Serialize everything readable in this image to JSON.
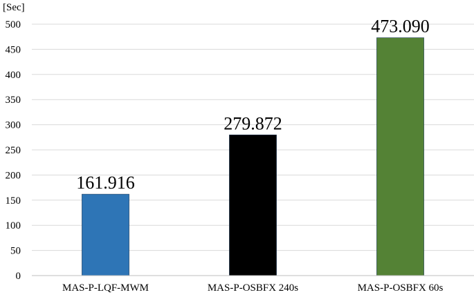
{
  "chart_data": {
    "type": "bar",
    "title": "",
    "xlabel": "",
    "ylabel": "",
    "unit_label": "[Sec]",
    "categories": [
      "MAS-P-LQF-MWM",
      "MAS-P-OSBFX 240s",
      "MAS-P-OSBFX 60s"
    ],
    "values": [
      161.916,
      279.872,
      473.09
    ],
    "data_labels": [
      "161.916",
      "279.872",
      "473.090"
    ],
    "colors": [
      "#2e75b6",
      "#000000",
      "#548235"
    ],
    "ylim": [
      0,
      500
    ],
    "yticks": [
      0,
      50,
      100,
      150,
      200,
      250,
      300,
      350,
      400,
      450,
      500
    ],
    "grid": true,
    "legend": "none"
  }
}
